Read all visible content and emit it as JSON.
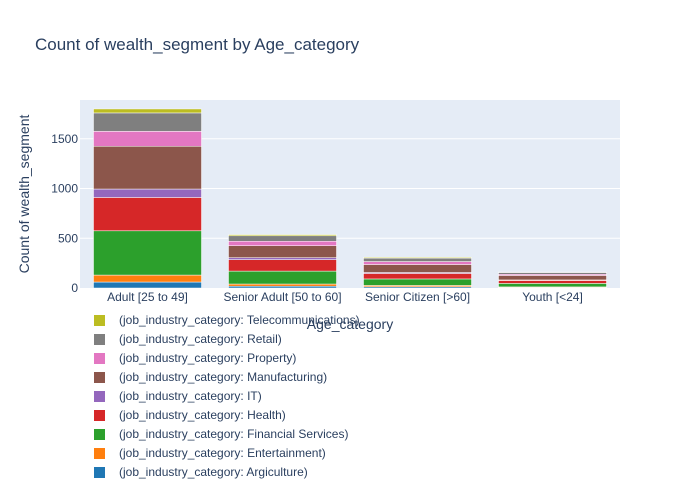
{
  "chart_data": {
    "type": "bar",
    "stacked": true,
    "title": "Count of wealth_segment by Age_category",
    "xlabel": "Age_category",
    "ylabel": "Count of wealth_segment",
    "categories": [
      "Adult [25 to 49]",
      "Senior Adult [50 to 60]",
      "Senior Citizen [>60]",
      "Youth [<24]"
    ],
    "ylim": [
      0,
      1890
    ],
    "yticks": [
      0,
      500,
      1000,
      1500
    ],
    "grid": true,
    "legend_position": "bottom-left",
    "series": [
      {
        "name": "(job_industry_category: Argiculture)",
        "color": "#1f77b4",
        "values": [
          60,
          18,
          12,
          5
        ]
      },
      {
        "name": "(job_industry_category: Entertainment)",
        "color": "#ff7f0e",
        "values": [
          70,
          22,
          14,
          6
        ]
      },
      {
        "name": "(job_industry_category: Financial Services)",
        "color": "#2ca02c",
        "values": [
          445,
          130,
          65,
          35
        ]
      },
      {
        "name": "(job_industry_category: Health)",
        "color": "#d62728",
        "values": [
          335,
          115,
          55,
          30
        ]
      },
      {
        "name": "(job_industry_category: IT)",
        "color": "#9467bd",
        "values": [
          85,
          20,
          10,
          5
        ]
      },
      {
        "name": "(job_industry_category: Manufacturing)",
        "color": "#8c564b",
        "values": [
          430,
          120,
          80,
          45
        ]
      },
      {
        "name": "(job_industry_category: Property)",
        "color": "#e377c2",
        "values": [
          150,
          45,
          30,
          12
        ]
      },
      {
        "name": "(job_industry_category: Retail)",
        "color": "#7f7f7f",
        "values": [
          185,
          55,
          35,
          18
        ]
      },
      {
        "name": "(job_industry_category: Telecommunications)",
        "color": "#bcbd22",
        "values": [
          40,
          12,
          8,
          4
        ]
      }
    ]
  }
}
